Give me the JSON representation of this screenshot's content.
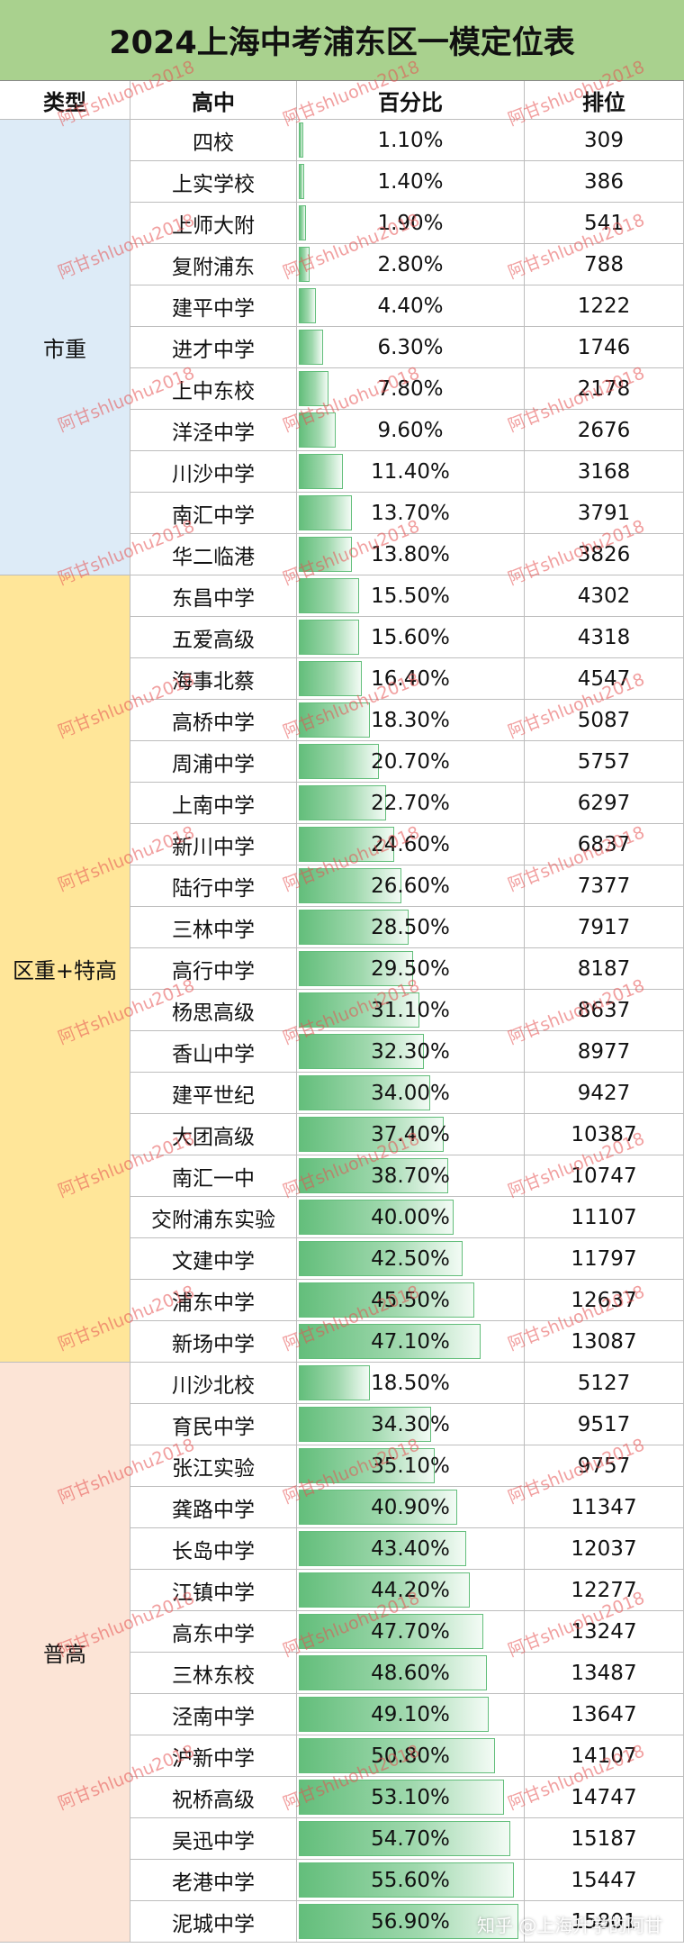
{
  "title": "2024上海中考浦东区一模定位表",
  "headers": {
    "type": "类型",
    "school": "高中",
    "percent": "百分比",
    "rank": "排位"
  },
  "groups": [
    {
      "label": "市重",
      "color": "#ddebf7",
      "count": 11
    },
    {
      "label": "区重+特高",
      "color": "#ffe699",
      "count": 19
    },
    {
      "label": "普高",
      "color": "#fce4d6",
      "count": 14
    }
  ],
  "rows": [
    {
      "school": "四校",
      "percent": "1.10%",
      "value": 1.1,
      "rank": "309"
    },
    {
      "school": "上实学校",
      "percent": "1.40%",
      "value": 1.4,
      "rank": "386"
    },
    {
      "school": "上师大附",
      "percent": "1.90%",
      "value": 1.9,
      "rank": "541"
    },
    {
      "school": "复附浦东",
      "percent": "2.80%",
      "value": 2.8,
      "rank": "788"
    },
    {
      "school": "建平中学",
      "percent": "4.40%",
      "value": 4.4,
      "rank": "1222"
    },
    {
      "school": "进才中学",
      "percent": "6.30%",
      "value": 6.3,
      "rank": "1746"
    },
    {
      "school": "上中东校",
      "percent": "7.80%",
      "value": 7.8,
      "rank": "2178"
    },
    {
      "school": "洋泾中学",
      "percent": "9.60%",
      "value": 9.6,
      "rank": "2676"
    },
    {
      "school": "川沙中学",
      "percent": "11.40%",
      "value": 11.4,
      "rank": "3168"
    },
    {
      "school": "南汇中学",
      "percent": "13.70%",
      "value": 13.7,
      "rank": "3791"
    },
    {
      "school": "华二临港",
      "percent": "13.80%",
      "value": 13.8,
      "rank": "3826"
    },
    {
      "school": "东昌中学",
      "percent": "15.50%",
      "value": 15.5,
      "rank": "4302"
    },
    {
      "school": "五爱高级",
      "percent": "15.60%",
      "value": 15.6,
      "rank": "4318"
    },
    {
      "school": "海事北蔡",
      "percent": "16.40%",
      "value": 16.4,
      "rank": "4547"
    },
    {
      "school": "高桥中学",
      "percent": "18.30%",
      "value": 18.3,
      "rank": "5087"
    },
    {
      "school": "周浦中学",
      "percent": "20.70%",
      "value": 20.7,
      "rank": "5757"
    },
    {
      "school": "上南中学",
      "percent": "22.70%",
      "value": 22.7,
      "rank": "6297"
    },
    {
      "school": "新川中学",
      "percent": "24.60%",
      "value": 24.6,
      "rank": "6837"
    },
    {
      "school": "陆行中学",
      "percent": "26.60%",
      "value": 26.6,
      "rank": "7377"
    },
    {
      "school": "三林中学",
      "percent": "28.50%",
      "value": 28.5,
      "rank": "7917"
    },
    {
      "school": "高行中学",
      "percent": "29.50%",
      "value": 29.5,
      "rank": "8187"
    },
    {
      "school": "杨思高级",
      "percent": "31.10%",
      "value": 31.1,
      "rank": "8637"
    },
    {
      "school": "香山中学",
      "percent": "32.30%",
      "value": 32.3,
      "rank": "8977"
    },
    {
      "school": "建平世纪",
      "percent": "34.00%",
      "value": 34.0,
      "rank": "9427"
    },
    {
      "school": "大团高级",
      "percent": "37.40%",
      "value": 37.4,
      "rank": "10387"
    },
    {
      "school": "南汇一中",
      "percent": "38.70%",
      "value": 38.7,
      "rank": "10747"
    },
    {
      "school": "交附浦东实验",
      "percent": "40.00%",
      "value": 40.0,
      "rank": "11107"
    },
    {
      "school": "文建中学",
      "percent": "42.50%",
      "value": 42.5,
      "rank": "11797"
    },
    {
      "school": "浦东中学",
      "percent": "45.50%",
      "value": 45.5,
      "rank": "12637"
    },
    {
      "school": "新场中学",
      "percent": "47.10%",
      "value": 47.1,
      "rank": "13087"
    },
    {
      "school": "川沙北校",
      "percent": "18.50%",
      "value": 18.5,
      "rank": "5127"
    },
    {
      "school": "育民中学",
      "percent": "34.30%",
      "value": 34.3,
      "rank": "9517"
    },
    {
      "school": "张江实验",
      "percent": "35.10%",
      "value": 35.1,
      "rank": "9757"
    },
    {
      "school": "龚路中学",
      "percent": "40.90%",
      "value": 40.9,
      "rank": "11347"
    },
    {
      "school": "长岛中学",
      "percent": "43.40%",
      "value": 43.4,
      "rank": "12037"
    },
    {
      "school": "江镇中学",
      "percent": "44.20%",
      "value": 44.2,
      "rank": "12277"
    },
    {
      "school": "高东中学",
      "percent": "47.70%",
      "value": 47.7,
      "rank": "13247"
    },
    {
      "school": "三林东校",
      "percent": "48.60%",
      "value": 48.6,
      "rank": "13487"
    },
    {
      "school": "泾南中学",
      "percent": "49.10%",
      "value": 49.1,
      "rank": "13647"
    },
    {
      "school": "沪新中学",
      "percent": "50.80%",
      "value": 50.8,
      "rank": "14107"
    },
    {
      "school": "祝桥高级",
      "percent": "53.10%",
      "value": 53.1,
      "rank": "14747"
    },
    {
      "school": "吴迅中学",
      "percent": "54.70%",
      "value": 54.7,
      "rank": "15187"
    },
    {
      "school": "老港中学",
      "percent": "55.60%",
      "value": 55.6,
      "rank": "15447"
    },
    {
      "school": "泥城中学",
      "percent": "56.90%",
      "value": 56.9,
      "rank": "15801"
    }
  ],
  "bar_max_value": 58,
  "watermark": "阿甘shluohu2018",
  "footer_mark": "知乎 @上海升学的阿甘"
}
